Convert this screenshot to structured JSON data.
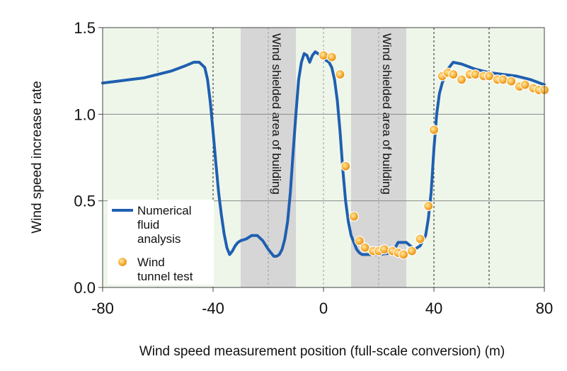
{
  "chart_data": {
    "type": "line",
    "title": "",
    "xlabel": "Wind speed measurement position (full-scale conversion) (m)",
    "ylabel": "Wind speed increase rate",
    "xlim": [
      -80,
      80
    ],
    "ylim": [
      0.0,
      1.5
    ],
    "x_ticks": [
      "-80",
      "-40",
      "0",
      "40",
      "80"
    ],
    "y_ticks": [
      "0.0",
      "0.5",
      "1.0",
      "1.5"
    ],
    "x_tick_values": [
      -80,
      -40,
      0,
      40,
      80
    ],
    "y_tick_values": [
      0.0,
      0.5,
      1.0,
      1.5
    ],
    "grid": true,
    "shaded_regions": [
      {
        "x_start": -30,
        "x_end": -10,
        "label": "Wind shielded area of building"
      },
      {
        "x_start": 10,
        "x_end": 30,
        "label": "Wind shielded area of building"
      }
    ],
    "dashed_reference_lines": [
      -60,
      -40,
      -20,
      0,
      20,
      40,
      60
    ],
    "legend_position": "lower-left",
    "series": [
      {
        "name": "Numerical fluid analysis",
        "style": "line",
        "color": "#1f5fb0",
        "x": [
          -80,
          -75,
          -70,
          -65,
          -60,
          -55,
          -50,
          -47,
          -45,
          -43,
          -42,
          -41,
          -40,
          -39,
          -38,
          -37,
          -36,
          -35,
          -34,
          -33,
          -32,
          -31,
          -30,
          -28,
          -26,
          -24,
          -22,
          -20,
          -19,
          -18,
          -17,
          -16,
          -15,
          -14,
          -13,
          -12,
          -11,
          -10,
          -9,
          -8,
          -7,
          -6,
          -5,
          -4,
          -3,
          -2,
          -1,
          0,
          1,
          2,
          3,
          4,
          5,
          6,
          7,
          8,
          9,
          10,
          11,
          12,
          13,
          14,
          15,
          20,
          25,
          27,
          30,
          33,
          35,
          37,
          38,
          39,
          40,
          41,
          42,
          43,
          44,
          45,
          47,
          50,
          55,
          60,
          65,
          70,
          75,
          80
        ],
        "y": [
          1.18,
          1.19,
          1.2,
          1.21,
          1.23,
          1.25,
          1.28,
          1.3,
          1.3,
          1.27,
          1.2,
          1.07,
          0.9,
          0.72,
          0.55,
          0.42,
          0.31,
          0.23,
          0.19,
          0.21,
          0.24,
          0.26,
          0.27,
          0.28,
          0.3,
          0.3,
          0.27,
          0.22,
          0.2,
          0.18,
          0.18,
          0.19,
          0.22,
          0.28,
          0.38,
          0.55,
          0.78,
          1.0,
          1.2,
          1.3,
          1.35,
          1.34,
          1.3,
          1.34,
          1.36,
          1.35,
          1.34,
          1.33,
          1.31,
          1.3,
          1.27,
          1.2,
          1.08,
          0.9,
          0.68,
          0.5,
          0.38,
          0.3,
          0.26,
          0.22,
          0.2,
          0.19,
          0.19,
          0.19,
          0.2,
          0.26,
          0.26,
          0.22,
          0.24,
          0.3,
          0.4,
          0.55,
          0.8,
          1.0,
          1.12,
          1.18,
          1.22,
          1.26,
          1.3,
          1.29,
          1.26,
          1.24,
          1.23,
          1.22,
          1.2,
          1.17
        ]
      },
      {
        "name": "Wind tunnel test",
        "style": "markers",
        "color": "#f5a623",
        "x": [
          0,
          3,
          6,
          8,
          11,
          13,
          15,
          18,
          20,
          22,
          25,
          27,
          29,
          32,
          35,
          38,
          40,
          43,
          45,
          47,
          50,
          53,
          55,
          58,
          60,
          63,
          65,
          68,
          71,
          73,
          76,
          78,
          80
        ],
        "y": [
          1.34,
          1.33,
          1.23,
          0.7,
          0.41,
          0.27,
          0.23,
          0.21,
          0.21,
          0.22,
          0.21,
          0.2,
          0.19,
          0.21,
          0.28,
          0.47,
          0.91,
          1.22,
          1.24,
          1.23,
          1.2,
          1.23,
          1.23,
          1.22,
          1.22,
          1.2,
          1.2,
          1.19,
          1.16,
          1.17,
          1.15,
          1.14,
          1.14
        ]
      }
    ]
  }
}
